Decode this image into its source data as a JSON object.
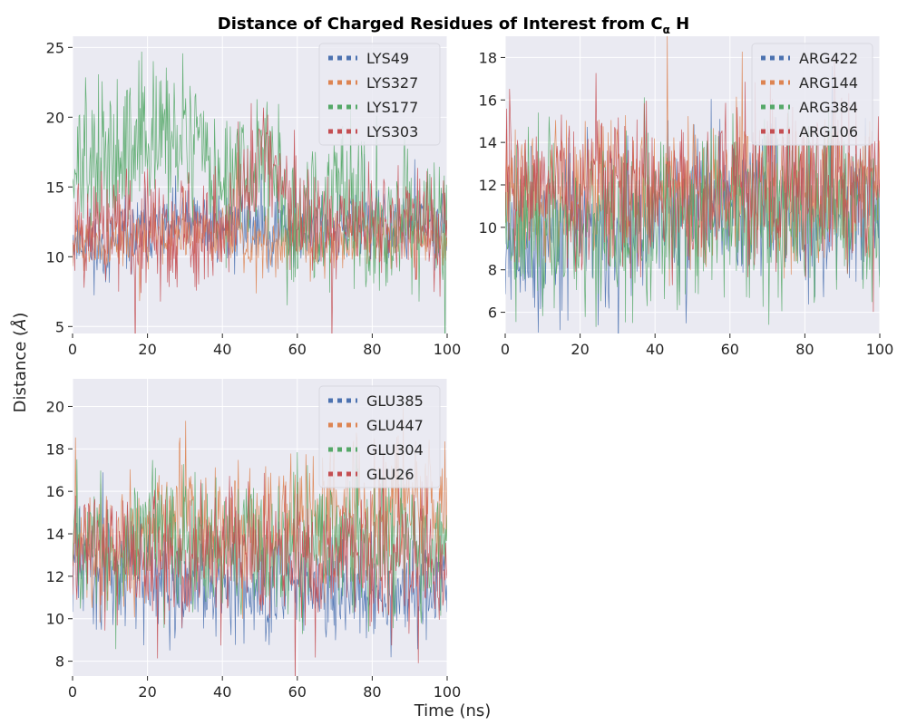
{
  "figure": {
    "title_main": "Distance of Charged Residues of Interest from C",
    "title_sub": "α",
    "title_tail": " H",
    "xlabel": "Time (ns)",
    "ylabel_main": "Distance (",
    "ylabel_unit": "Å",
    "ylabel_close": ")"
  },
  "chart_data": [
    {
      "type": "line",
      "xlim": [
        0,
        100
      ],
      "ylim": [
        4.5,
        25.8
      ],
      "xticks": [
        0,
        20,
        40,
        60,
        80,
        100
      ],
      "yticks": [
        5,
        10,
        15,
        20,
        25
      ],
      "grid": true,
      "legend_position": "top-right",
      "series": [
        {
          "name": "LYS49",
          "color": "#4c72b0",
          "mean": [
            11.2,
            10.5,
            11.8,
            12.5,
            12.0,
            12.3,
            11.8,
            12.0,
            12.3,
            12.2,
            12.0
          ],
          "amp": 1.3,
          "seed": 11
        },
        {
          "name": "LYS327",
          "color": "#dd8452",
          "mean": [
            11.2,
            10.8,
            11.6,
            11.8,
            11.6,
            11.0,
            10.9,
            11.2,
            11.4,
            11.5,
            11.4
          ],
          "amp": 1.1,
          "seed": 12
        },
        {
          "name": "LYS177",
          "color": "#55a868",
          "mean": [
            16.0,
            16.8,
            18.5,
            19.0,
            14.5,
            17.5,
            13.0,
            13.2,
            12.5,
            12.0,
            12.2
          ],
          "amp": 2.6,
          "seed": 13
        },
        {
          "name": "LYS303",
          "color": "#c44e52",
          "mean": [
            12.2,
            11.8,
            11.8,
            12.0,
            11.0,
            17.5,
            12.5,
            12.0,
            12.0,
            12.5,
            12.0
          ],
          "amp": 2.0,
          "seed": 14
        }
      ]
    },
    {
      "type": "line",
      "xlim": [
        0,
        100
      ],
      "ylim": [
        5.0,
        19.0
      ],
      "xticks": [
        0,
        20,
        40,
        60,
        80,
        100
      ],
      "yticks": [
        6,
        8,
        10,
        12,
        14,
        16,
        18
      ],
      "grid": true,
      "legend_position": "top-right",
      "series": [
        {
          "name": "ARG422",
          "color": "#4c72b0",
          "mean": [
            10.0,
            9.0,
            10.5,
            9.5,
            10.5,
            11.0,
            11.0,
            11.0,
            10.5,
            11.0,
            11.0
          ],
          "amp": 1.8,
          "seed": 21
        },
        {
          "name": "ARG144",
          "color": "#dd8452",
          "mean": [
            12.0,
            12.0,
            12.0,
            11.8,
            12.0,
            11.8,
            12.0,
            12.0,
            11.5,
            12.0,
            11.5
          ],
          "amp": 1.6,
          "seed": 22
        },
        {
          "name": "ARG384",
          "color": "#55a868",
          "mean": [
            10.5,
            10.5,
            10.0,
            9.5,
            10.0,
            10.5,
            11.0,
            10.5,
            10.5,
            10.5,
            10.5
          ],
          "amp": 2.0,
          "seed": 23
        },
        {
          "name": "ARG106",
          "color": "#c44e52",
          "mean": [
            12.5,
            12.0,
            12.0,
            12.0,
            11.5,
            11.5,
            12.0,
            12.0,
            12.0,
            12.0,
            11.5
          ],
          "amp": 1.8,
          "seed": 24
        }
      ]
    },
    {
      "type": "line",
      "xlim": [
        0,
        100
      ],
      "ylim": [
        7.3,
        21.3
      ],
      "xticks": [
        0,
        20,
        40,
        60,
        80,
        100
      ],
      "yticks": [
        8,
        10,
        12,
        14,
        16,
        18,
        20
      ],
      "grid": true,
      "legend_position": "top-right",
      "series": [
        {
          "name": "GLU385",
          "color": "#4c72b0",
          "mean": [
            13.0,
            12.0,
            12.0,
            11.8,
            11.5,
            11.5,
            11.5,
            11.5,
            11.5,
            11.0,
            11.5
          ],
          "amp": 1.2,
          "seed": 31
        },
        {
          "name": "GLU447",
          "color": "#dd8452",
          "mean": [
            13.5,
            13.0,
            13.5,
            15.5,
            14.0,
            14.0,
            14.5,
            15.0,
            15.0,
            15.5,
            15.0
          ],
          "amp": 1.5,
          "seed": 32
        },
        {
          "name": "GLU304",
          "color": "#55a868",
          "mean": [
            14.5,
            13.0,
            14.0,
            13.5,
            13.0,
            13.5,
            13.5,
            13.5,
            13.5,
            13.5,
            13.0
          ],
          "amp": 1.6,
          "seed": 33
        },
        {
          "name": "GLU26",
          "color": "#c44e52",
          "mean": [
            13.5,
            13.0,
            13.0,
            13.0,
            13.0,
            13.0,
            13.0,
            13.0,
            13.0,
            13.0,
            13.0
          ],
          "amp": 1.5,
          "seed": 34
        }
      ]
    }
  ]
}
